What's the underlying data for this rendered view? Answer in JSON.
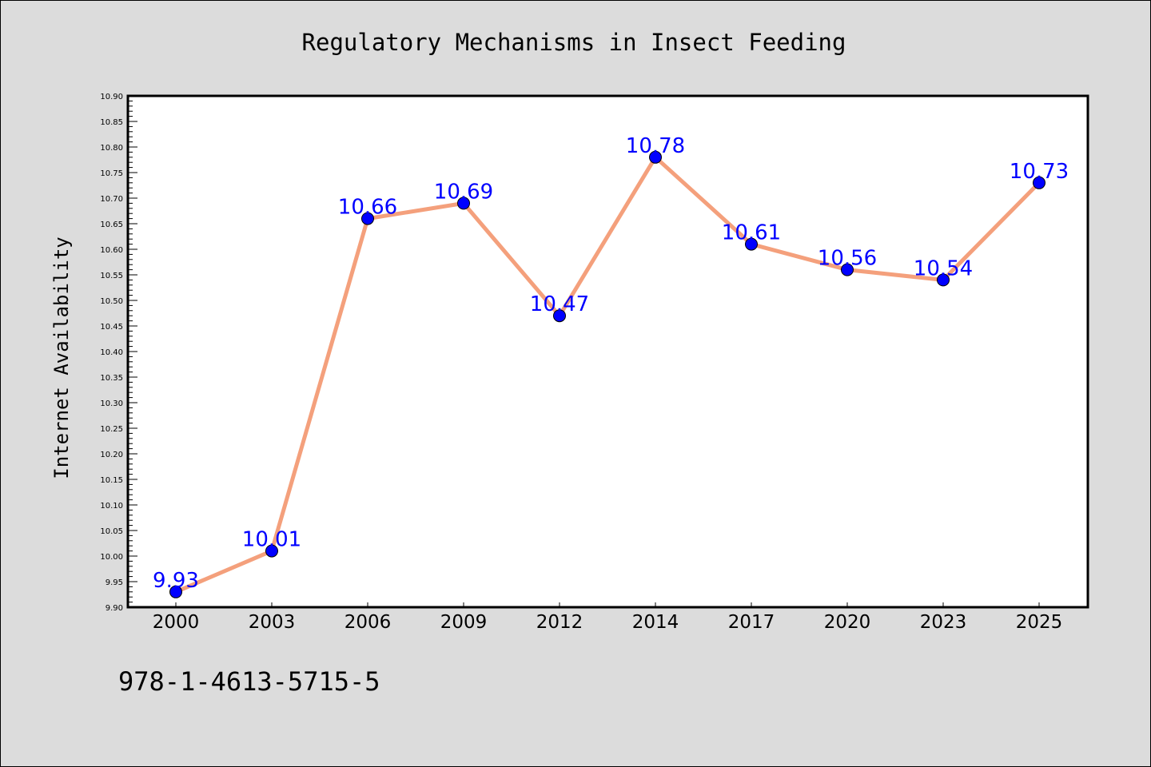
{
  "chart_data": {
    "type": "line",
    "title": "Regulatory Mechanisms in Insect Feeding",
    "xlabel": "",
    "ylabel": "Internet Availability",
    "categories": [
      "2000",
      "2003",
      "2006",
      "2009",
      "2012",
      "2014",
      "2017",
      "2020",
      "2023",
      "2025"
    ],
    "series": [
      {
        "values": [
          9.93,
          10.01,
          10.66,
          10.69,
          10.47,
          10.78,
          10.61,
          10.56,
          10.54,
          10.73
        ],
        "labels": [
          "9.93",
          "10.01",
          "10.66",
          "10.69",
          "10.47",
          "10.78",
          "10.61",
          "10.56",
          "10.54",
          "10.73"
        ],
        "line_color": "#f4a07c",
        "marker_color": "#0000ff",
        "label_color": "#0000ff"
      }
    ],
    "ylim": [
      9.9,
      10.9
    ],
    "yticks": [
      "9.90",
      "9.95",
      "10.00",
      "10.05",
      "10.10",
      "10.15",
      "10.20",
      "10.25",
      "10.30",
      "10.35",
      "10.40",
      "10.45",
      "10.50",
      "10.55",
      "10.60",
      "10.65",
      "10.70",
      "10.75",
      "10.80",
      "10.85",
      "10.90"
    ],
    "grid": false,
    "legend": "none"
  },
  "footer": {
    "isbn": "978-1-4613-5715-5"
  },
  "colors": {
    "figure_bg": "#dcdcdc",
    "plot_bg": "#ffffff"
  }
}
